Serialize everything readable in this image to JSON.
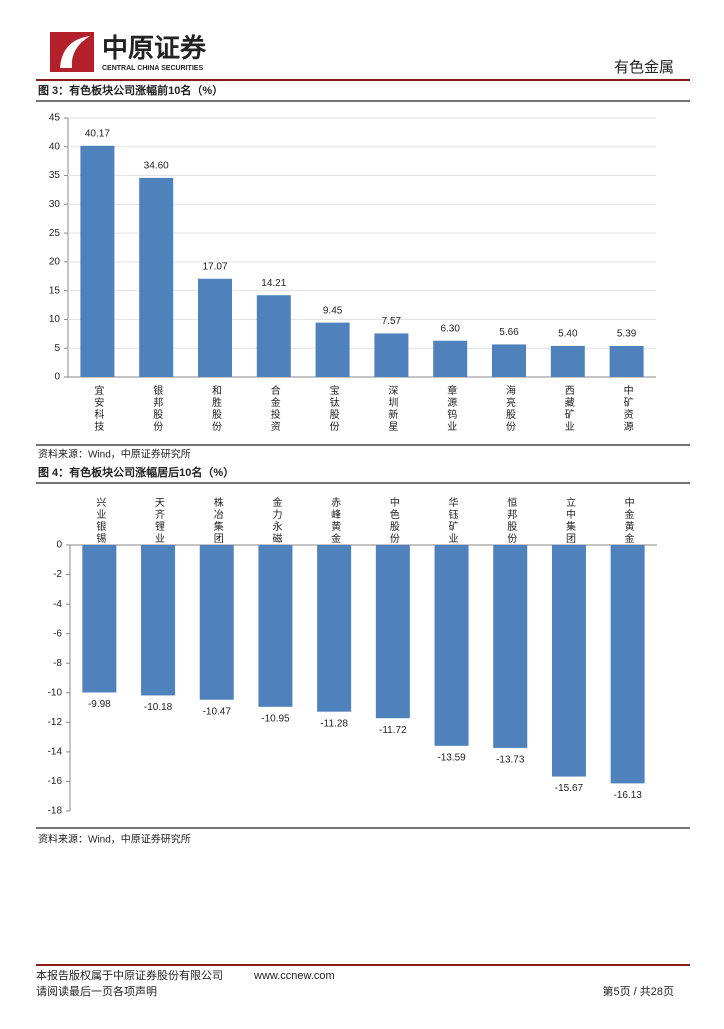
{
  "header": {
    "company": "中原证券",
    "company_en": "CENTRAL CHINA SECURITIES",
    "sector": "有色金属"
  },
  "figures": [
    {
      "caption": "图 3：有色板块公司涨幅前10名（%）",
      "source": "资料来源：Wind，中原证券研究所"
    },
    {
      "caption": "图 4：有色板块公司涨幅居后10名（%）",
      "source": "资料来源：Wind，中原证券研究所"
    }
  ],
  "chart_data": [
    {
      "type": "bar",
      "color": "#4f81bd",
      "grid": true,
      "categories": [
        "宜安科技",
        "银邦股份",
        "和胜股份",
        "合金投资",
        "宝钛股份",
        "深圳新星",
        "章源钨业",
        "海亮股份",
        "西藏矿业",
        "中矿资源"
      ],
      "values": [
        40.17,
        34.6,
        17.07,
        14.21,
        9.45,
        7.57,
        6.3,
        5.66,
        5.4,
        5.39
      ],
      "value_labels": [
        "40.17",
        "34.60",
        "17.07",
        "14.21",
        "9.45",
        "7.57",
        "6.30",
        "5.66",
        "5.40",
        "5.39"
      ],
      "ylim": [
        0,
        45
      ],
      "yticks": [
        0,
        5,
        10,
        15,
        20,
        25,
        30,
        35,
        40,
        45
      ]
    },
    {
      "type": "bar",
      "color": "#4f81bd",
      "grid": false,
      "categories": [
        "兴业银锡",
        "天齐锂业",
        "株冶集团",
        "金力永磁",
        "赤峰黄金",
        "中色股份",
        "华钰矿业",
        "恒邦股份",
        "立中集团",
        "中金黄金"
      ],
      "values": [
        -9.98,
        -10.18,
        -10.47,
        -10.95,
        -11.28,
        -11.72,
        -13.59,
        -13.73,
        -15.67,
        -16.13
      ],
      "ylim": [
        -18,
        0
      ],
      "yticks": [
        0,
        -2,
        -4,
        -6,
        -8,
        -10,
        -12,
        -14,
        -16,
        -18
      ]
    }
  ],
  "footer": {
    "copyright": "本报告版权属于中原证券股份有限公司",
    "website": "www.ccnew.com",
    "notice": "请阅读最后一页各项声明",
    "page": "第5页 / 共28页"
  }
}
